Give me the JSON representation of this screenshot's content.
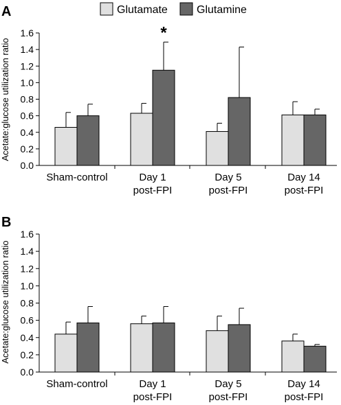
{
  "legend": {
    "items": [
      {
        "label": "Glutamate",
        "color": "#e0e0e0"
      },
      {
        "label": "Glutamine",
        "color": "#666666"
      }
    ]
  },
  "chart_data": [
    {
      "type": "bar",
      "panel_label": "A",
      "ylabel": "Acetate:glucose utilization ratio",
      "ylim": [
        0,
        1.6
      ],
      "yticks": [
        "0.0",
        "0.2",
        "0.4",
        "0.6",
        "0.8",
        "1.0",
        "1.2",
        "1.4",
        "1.6"
      ],
      "categories": [
        [
          "Sham-control"
        ],
        [
          "Day 1",
          "post-FPI"
        ],
        [
          "Day 5",
          "post-FPI"
        ],
        [
          "Day 14",
          "post-FPI"
        ]
      ],
      "series": [
        {
          "name": "Glutamate",
          "values": [
            0.46,
            0.63,
            0.41,
            0.61
          ],
          "errors": [
            0.18,
            0.12,
            0.1,
            0.16
          ]
        },
        {
          "name": "Glutamine",
          "values": [
            0.6,
            1.15,
            0.82,
            0.61
          ],
          "errors": [
            0.14,
            0.34,
            0.61,
            0.07
          ]
        }
      ],
      "annotations": [
        {
          "text": "*",
          "category_index": 1,
          "series_index": 1
        }
      ]
    },
    {
      "type": "bar",
      "panel_label": "B",
      "ylabel": "Acetate:glucose utilization ratio",
      "ylim": [
        0,
        1.6
      ],
      "yticks": [
        "0.0",
        "0.2",
        "0.4",
        "0.6",
        "0.8",
        "1.0",
        "1.2",
        "1.4",
        "1.6"
      ],
      "categories": [
        [
          "Sham-control"
        ],
        [
          "Day 1",
          "post-FPI"
        ],
        [
          "Day 5",
          "post-FPI"
        ],
        [
          "Day 14",
          "post-FPI"
        ]
      ],
      "series": [
        {
          "name": "Glutamate",
          "values": [
            0.44,
            0.56,
            0.48,
            0.36
          ],
          "errors": [
            0.14,
            0.09,
            0.17,
            0.08
          ]
        },
        {
          "name": "Glutamine",
          "values": [
            0.57,
            0.57,
            0.55,
            0.3
          ],
          "errors": [
            0.19,
            0.19,
            0.19,
            0.02
          ]
        }
      ],
      "annotations": []
    }
  ]
}
